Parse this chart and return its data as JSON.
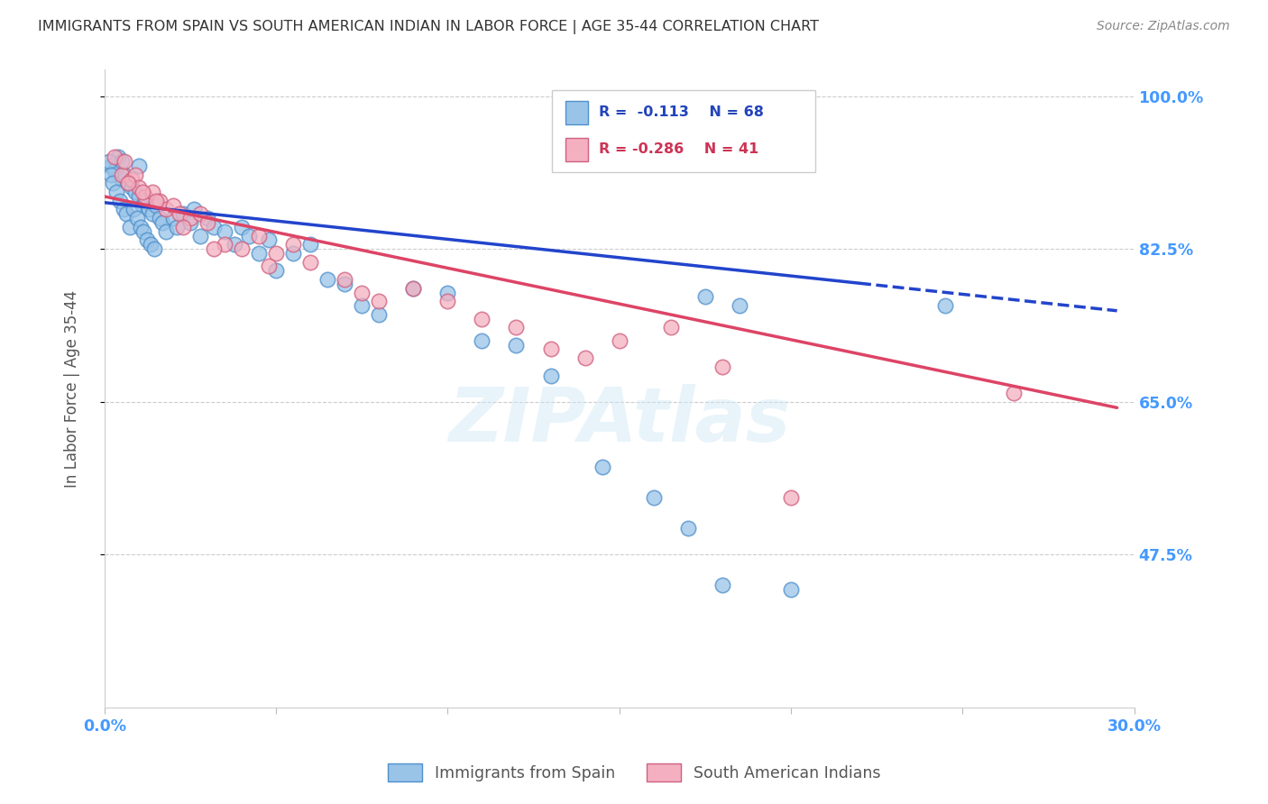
{
  "title": "IMMIGRANTS FROM SPAIN VS SOUTH AMERICAN INDIAN IN LABOR FORCE | AGE 35-44 CORRELATION CHART",
  "source": "Source: ZipAtlas.com",
  "ylabel": "In Labor Force | Age 35-44",
  "ytick_vals": [
    1.0,
    0.825,
    0.65,
    0.475
  ],
  "ytick_labels": [
    "100.0%",
    "82.5%",
    "65.0%",
    "47.5%"
  ],
  "blue_color": "#99c4e8",
  "blue_edge": "#5090cc",
  "pink_color": "#f4b0c0",
  "pink_edge": "#d06080",
  "line_blue": "#2244cc",
  "line_pink": "#dd4466",
  "axis_label_color": "#4499ff",
  "background_color": "#ffffff",
  "grid_color": "#cccccc",
  "legend_r1_color": "#2244bb",
  "legend_r2_color": "#cc3355",
  "title_color": "#333333",
  "source_color": "#888888",
  "blue_x": [
    0.2,
    0.3,
    0.4,
    0.5,
    0.5,
    0.6,
    0.7,
    0.8,
    0.9,
    1.0,
    1.0,
    1.1,
    1.2,
    1.3,
    1.4,
    1.5,
    1.6,
    1.7,
    1.8,
    2.0,
    2.1,
    2.3,
    2.5,
    2.6,
    2.8,
    3.0,
    3.2,
    3.5,
    3.8,
    4.0,
    4.2,
    4.5,
    4.8,
    5.0,
    5.5,
    6.0,
    6.5,
    7.0,
    7.5,
    8.0,
    9.0,
    10.0,
    11.0,
    12.0,
    13.0,
    14.5,
    16.0,
    17.0,
    18.0,
    0.15,
    0.2,
    0.25,
    0.35,
    0.45,
    0.55,
    0.65,
    0.75,
    0.85,
    0.95,
    1.05,
    1.15,
    1.25,
    1.35,
    1.45,
    17.5,
    18.5,
    20.0,
    24.5
  ],
  "blue_y": [
    92.0,
    91.5,
    93.0,
    90.5,
    92.5,
    91.0,
    90.0,
    89.5,
    89.0,
    88.5,
    92.0,
    87.5,
    88.0,
    87.0,
    86.5,
    87.5,
    86.0,
    85.5,
    84.5,
    86.0,
    85.0,
    86.5,
    85.5,
    87.0,
    84.0,
    86.0,
    85.0,
    84.5,
    83.0,
    85.0,
    84.0,
    82.0,
    83.5,
    80.0,
    82.0,
    83.0,
    79.0,
    78.5,
    76.0,
    75.0,
    78.0,
    77.5,
    72.0,
    71.5,
    68.0,
    57.5,
    54.0,
    50.5,
    44.0,
    92.5,
    91.0,
    90.0,
    89.0,
    88.0,
    87.0,
    86.5,
    85.0,
    87.0,
    86.0,
    85.0,
    84.5,
    83.5,
    83.0,
    82.5,
    77.0,
    76.0,
    43.5,
    76.0
  ],
  "pink_x": [
    0.3,
    0.5,
    0.6,
    0.8,
    0.9,
    1.0,
    1.2,
    1.4,
    1.6,
    1.8,
    2.0,
    2.2,
    2.5,
    2.8,
    3.0,
    3.5,
    4.0,
    4.5,
    5.0,
    5.5,
    6.0,
    7.0,
    8.0,
    9.0,
    10.0,
    11.0,
    12.0,
    13.0,
    14.0,
    15.0,
    16.5,
    18.0,
    20.0,
    0.7,
    1.1,
    1.5,
    2.3,
    3.2,
    4.8,
    7.5,
    26.5
  ],
  "pink_y": [
    93.0,
    91.0,
    92.5,
    90.5,
    91.0,
    89.5,
    88.5,
    89.0,
    88.0,
    87.0,
    87.5,
    86.5,
    86.0,
    86.5,
    85.5,
    83.0,
    82.5,
    84.0,
    82.0,
    83.0,
    81.0,
    79.0,
    76.5,
    78.0,
    76.5,
    74.5,
    73.5,
    71.0,
    70.0,
    72.0,
    73.5,
    69.0,
    54.0,
    90.0,
    89.0,
    88.0,
    85.0,
    82.5,
    80.5,
    77.5,
    66.0
  ]
}
